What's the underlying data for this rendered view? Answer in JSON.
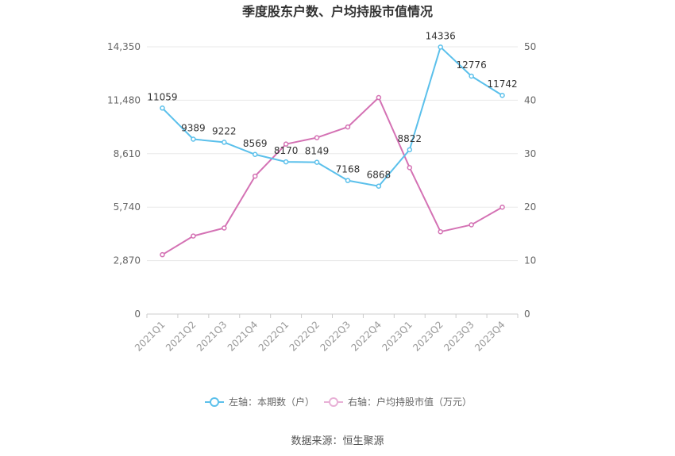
{
  "chart_data": {
    "type": "line",
    "title": "季度股东户数、户均持股市值情况",
    "categories": [
      "2021Q1",
      "2021Q2",
      "2021Q3",
      "2021Q4",
      "2022Q1",
      "2022Q2",
      "2022Q3",
      "2022Q4",
      "2023Q1",
      "2023Q2",
      "2023Q3",
      "2023Q4"
    ],
    "left_axis": {
      "min": 0,
      "max": 14350,
      "ticks": [
        0,
        2870,
        5740,
        8610,
        11480,
        14350
      ],
      "tick_labels": [
        "0",
        "2,870",
        "5,740",
        "8,610",
        "11,480",
        "14,350"
      ]
    },
    "right_axis": {
      "min": 0,
      "max": 50,
      "ticks": [
        0,
        10,
        20,
        30,
        40,
        50
      ],
      "tick_labels": [
        "0",
        "10",
        "20",
        "30",
        "40",
        "50"
      ]
    },
    "series": [
      {
        "name": "左轴：本期数（户）",
        "axis": "left",
        "color": "#5bc0eb",
        "values": [
          11059,
          9389,
          9222,
          8569,
          8170,
          8149,
          7168,
          6868,
          8822,
          14336,
          12776,
          11742
        ],
        "labels": [
          "11059",
          "9389",
          "9222",
          "8569",
          "8170",
          "8149",
          "7168",
          "6868",
          "8822",
          "14336",
          "12776",
          "11742"
        ]
      },
      {
        "name": "右轴：户均持股市值（万元）",
        "axis": "right",
        "color": "#d472b4",
        "values": [
          11.1,
          14.6,
          16.1,
          25.8,
          31.8,
          33.0,
          35.0,
          40.5,
          27.4,
          15.4,
          16.7,
          20.0
        ]
      }
    ],
    "grid": true,
    "legend_position": "bottom"
  },
  "source": "数据来源：恒生聚源"
}
